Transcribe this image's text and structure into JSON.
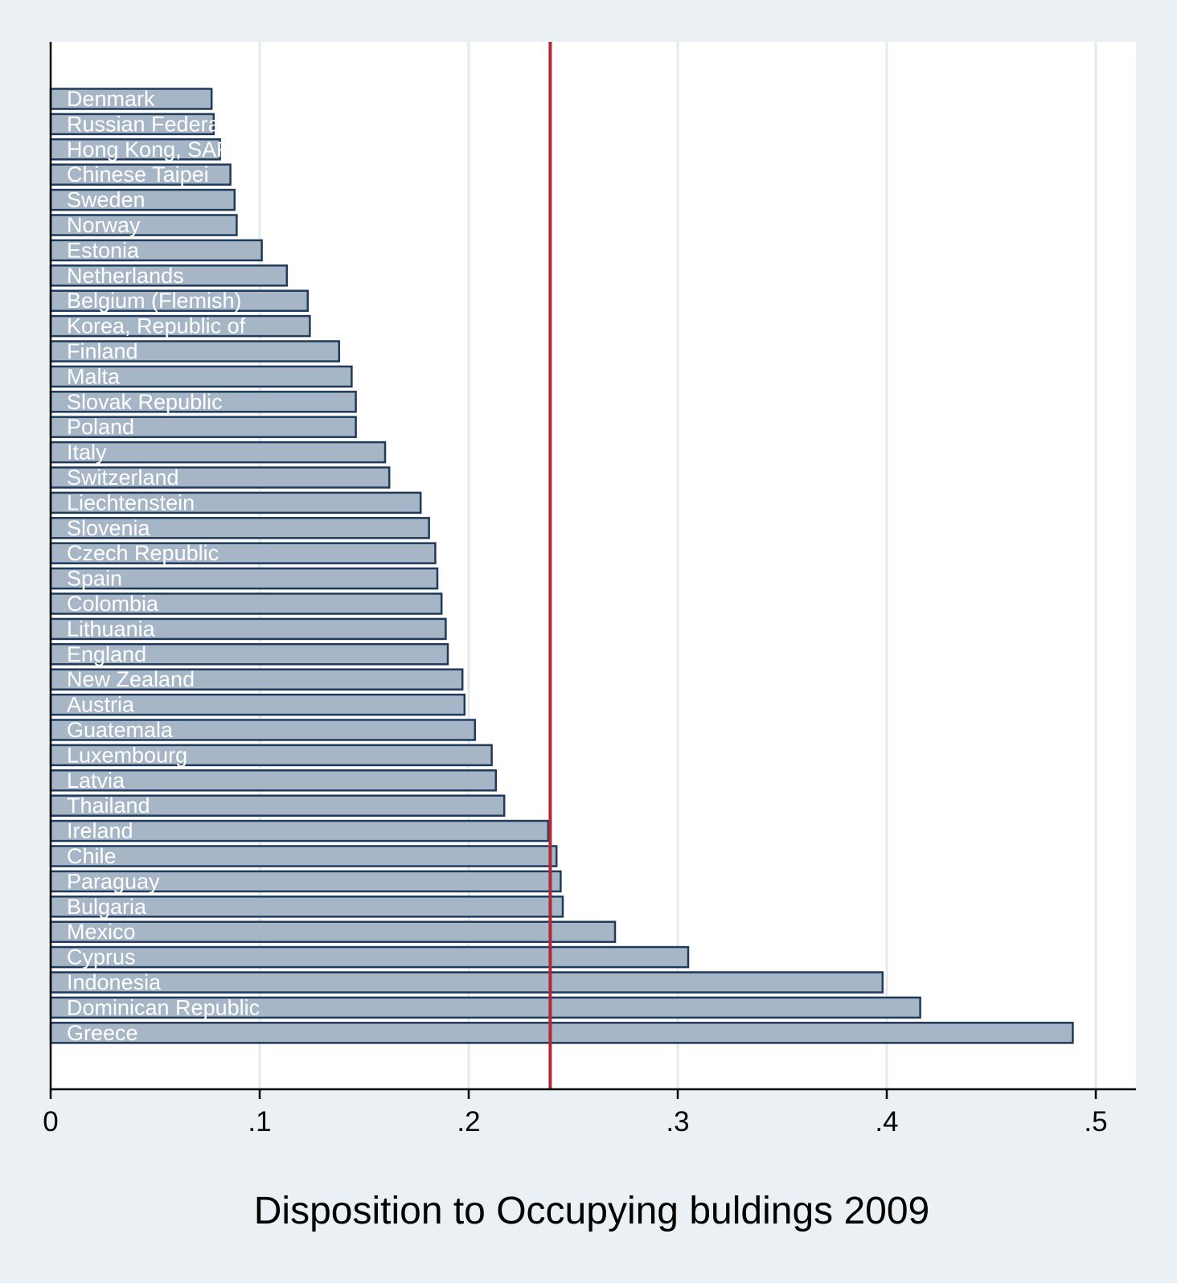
{
  "chart_data": {
    "type": "bar",
    "orientation": "horizontal",
    "xlabel": "Disposition to Occupying buldings 2009",
    "xlim": [
      0,
      0.52
    ],
    "x_ticks": [
      0,
      0.1,
      0.2,
      0.3,
      0.4,
      0.5
    ],
    "x_tick_labels": [
      "0",
      ".1",
      ".2",
      ".3",
      ".4",
      ".5"
    ],
    "grid": true,
    "reference_line": {
      "value": 0.239,
      "color": "#b0283a"
    },
    "bar_color": "#a6b6c6",
    "bar_edge_color": "#1f3a5a",
    "label_color": "#ffffff",
    "categories": [
      "Denmark",
      "Russian Federation",
      "Hong Kong, SAR",
      "Chinese Taipei",
      "Sweden",
      "Norway",
      "Estonia",
      "Netherlands",
      "Belgium (Flemish)",
      "Korea, Republic of",
      "Finland",
      "Malta",
      "Slovak Republic",
      "Poland",
      "Italy",
      "Switzerland",
      "Liechtenstein",
      "Slovenia",
      "Czech Republic",
      "Spain",
      "Colombia",
      "Lithuania",
      "England",
      "New Zealand",
      "Austria",
      "Guatemala",
      "Luxembourg",
      "Latvia",
      "Thailand",
      "Ireland",
      "Chile",
      "Paraguay",
      "Bulgaria",
      "Mexico",
      "Cyprus",
      "Indonesia",
      "Dominican Republic",
      "Greece"
    ],
    "values": [
      0.077,
      0.078,
      0.081,
      0.086,
      0.088,
      0.089,
      0.101,
      0.113,
      0.123,
      0.124,
      0.138,
      0.144,
      0.146,
      0.146,
      0.16,
      0.162,
      0.177,
      0.181,
      0.184,
      0.185,
      0.187,
      0.189,
      0.19,
      0.197,
      0.198,
      0.203,
      0.211,
      0.213,
      0.217,
      0.238,
      0.242,
      0.244,
      0.245,
      0.27,
      0.305,
      0.398,
      0.416,
      0.489
    ]
  }
}
